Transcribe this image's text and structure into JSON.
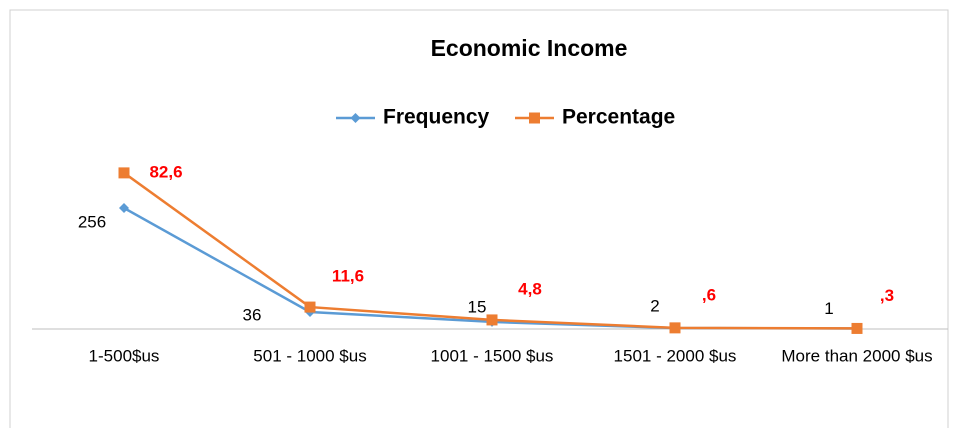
{
  "chart_data": {
    "type": "line",
    "title": "Economic Income",
    "categories": [
      "1-500$us",
      "501 - 1000 $us",
      "1001 - 1500 $us",
      "1501 - 2000 $us",
      "More than 2000 $us"
    ],
    "series": [
      {
        "name": "Frequency",
        "color": "#5b9bd5",
        "values": [
          256,
          36,
          15,
          2,
          1
        ]
      },
      {
        "name": "Percentage",
        "color": "#ed7d31",
        "axis": "y2",
        "values": [
          82.6,
          11.6,
          4.8,
          0.6,
          0.3
        ],
        "value_labels": [
          "82,6",
          "11,6",
          "4,8",
          ",6",
          ",3"
        ]
      }
    ],
    "ylim": [
      0,
      400
    ],
    "y2lim": [
      0,
      100
    ],
    "legend": "top"
  }
}
